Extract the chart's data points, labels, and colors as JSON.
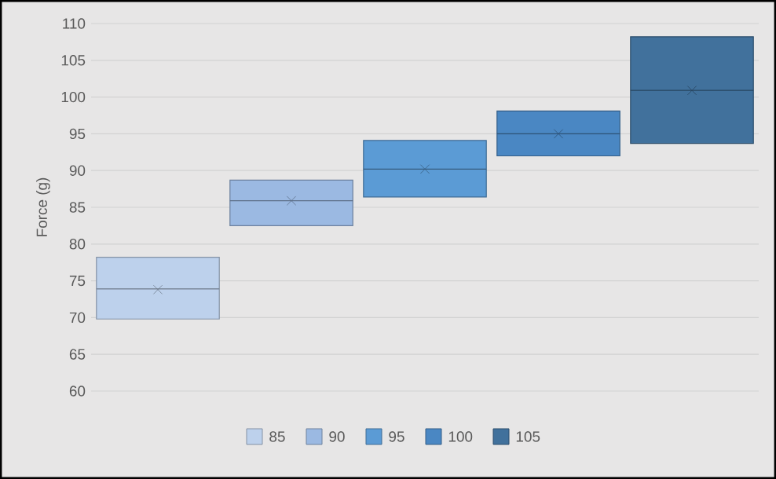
{
  "chart_data": {
    "type": "box",
    "ylabel": "Force (g)",
    "categories": [
      null
    ],
    "ylim": [
      60,
      110
    ],
    "yticks": [
      60,
      65,
      70,
      75,
      80,
      85,
      90,
      95,
      100,
      105,
      110
    ],
    "grid": "y",
    "legend": "bottom",
    "series": [
      {
        "name": "85",
        "color": "#bdd1ec",
        "boxes": [
          {
            "low": 69.8,
            "q1": 69.8,
            "median": 73.9,
            "q3": 78.2,
            "high": 78.2,
            "mean": 73.8
          }
        ]
      },
      {
        "name": "90",
        "color": "#9bb9e2",
        "boxes": [
          {
            "low": 82.5,
            "q1": 82.5,
            "median": 85.9,
            "q3": 88.7,
            "high": 88.7,
            "mean": 85.9
          }
        ]
      },
      {
        "name": "95",
        "color": "#5b9bd5",
        "boxes": [
          {
            "low": 86.4,
            "q1": 86.4,
            "median": 90.2,
            "q3": 94.1,
            "high": 94.1,
            "mean": 90.2
          }
        ]
      },
      {
        "name": "100",
        "color": "#4a87c3",
        "boxes": [
          {
            "low": 92.0,
            "q1": 92.0,
            "median": 95.0,
            "q3": 98.1,
            "high": 98.1,
            "mean": 95.0
          }
        ]
      },
      {
        "name": "105",
        "color": "#41719c",
        "boxes": [
          {
            "low": 93.7,
            "q1": 93.7,
            "median": 100.9,
            "q3": 108.2,
            "high": 108.2,
            "mean": 100.9
          }
        ]
      }
    ]
  }
}
